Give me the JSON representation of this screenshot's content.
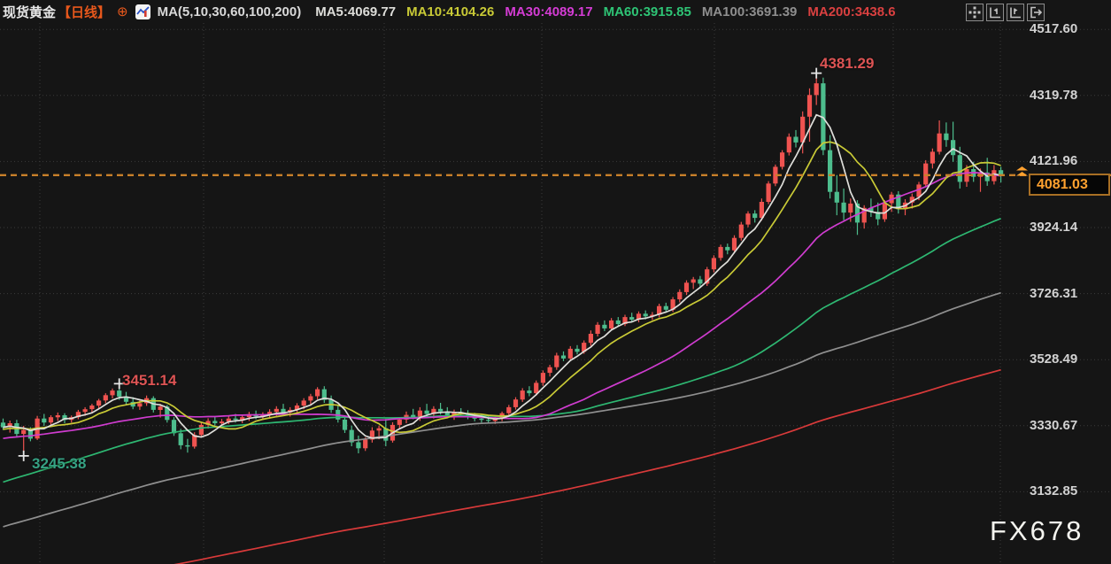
{
  "header": {
    "symbol": "现货黄金",
    "period": "【日线】",
    "expand_symbol": "⊕",
    "indicator_label": "MA(5,10,30,60,100,200)",
    "ma_items": [
      {
        "name": "MA5",
        "label": "MA5:4069.77",
        "value": 4069.77,
        "color": "#dededa"
      },
      {
        "name": "MA10",
        "label": "MA10:4104.26",
        "value": 4104.26,
        "color": "#c9ca36"
      },
      {
        "name": "MA30",
        "label": "MA30:4089.17",
        "value": 4089.17,
        "color": "#d43cd4"
      },
      {
        "name": "MA60",
        "label": "MA60:3915.85",
        "value": 3915.85,
        "color": "#2ec475"
      },
      {
        "name": "MA100",
        "label": "MA100:3691.39",
        "value": 3691.39,
        "color": "#8f8f8f"
      },
      {
        "name": "MA200",
        "label": "MA200:3438.6",
        "value": 3438.6,
        "color": "#d94040"
      }
    ],
    "toolbar_icons": [
      "move-icon",
      "axis-scale-left-icon",
      "axis-scale-right-icon",
      "exit-chart-icon"
    ]
  },
  "right_axis": {
    "labels": [
      "4517.60",
      "4319.78",
      "4121.96",
      "3924.14",
      "3726.31",
      "3528.49",
      "3330.67",
      "3132.85"
    ]
  },
  "price_tag": {
    "value": "4081.03"
  },
  "watermark": "FX678",
  "chart_data": {
    "type": "candlestick",
    "title": "现货黄金【日线】",
    "interval": "daily",
    "last_price": 4081.03,
    "y_ticks": [
      4517.6,
      4319.78,
      4121.96,
      3924.14,
      3726.31,
      3528.49,
      3330.67,
      3132.85
    ],
    "colors": {
      "up": "#ef5350",
      "down": "#4dbd8d",
      "price_line": "#c8802a",
      "background": "#151515"
    },
    "ma_lines": [
      {
        "period": 200,
        "color": "#d93a3a",
        "current": 3438.6
      },
      {
        "period": 100,
        "color": "#8f8f8f",
        "current": 3691.39
      },
      {
        "period": 60,
        "color": "#2eb872",
        "current": 3915.85
      },
      {
        "period": 30,
        "color": "#cf3ccf",
        "current": 4089.17
      },
      {
        "period": 10,
        "color": "#c9ca36",
        "current": 4104.26
      },
      {
        "period": 5,
        "color": "#dededa",
        "current": 4069.77
      }
    ],
    "annotations": [
      {
        "text": "4381.29",
        "price": 4381.29,
        "bar": 119,
        "side": "high",
        "color": "#dd5454"
      },
      {
        "text": "3451.14",
        "price": 3451.14,
        "bar": 17,
        "side": "high",
        "color": "#dd5454"
      },
      {
        "text": "3245.38",
        "price": 3245.38,
        "bar": 3,
        "side": "low",
        "color": "#36a284"
      }
    ],
    "candles": [
      [
        3340,
        3352,
        3318,
        3326
      ],
      [
        3326,
        3346,
        3310,
        3338
      ],
      [
        3338,
        3348,
        3298,
        3306
      ],
      [
        3306,
        3330,
        3245.38,
        3318
      ],
      [
        3318,
        3326,
        3284,
        3292
      ],
      [
        3292,
        3360,
        3288,
        3352
      ],
      [
        3352,
        3366,
        3330,
        3340
      ],
      [
        3340,
        3362,
        3332,
        3356
      ],
      [
        3356,
        3370,
        3345,
        3362
      ],
      [
        3362,
        3368,
        3338,
        3348
      ],
      [
        3348,
        3361,
        3340,
        3356
      ],
      [
        3356,
        3378,
        3350,
        3372
      ],
      [
        3372,
        3386,
        3360,
        3380
      ],
      [
        3380,
        3396,
        3368,
        3391
      ],
      [
        3391,
        3411,
        3382,
        3406
      ],
      [
        3406,
        3428,
        3398,
        3422
      ],
      [
        3422,
        3442,
        3412,
        3436
      ],
      [
        3436,
        3451.14,
        3408,
        3418
      ],
      [
        3418,
        3432,
        3394,
        3402
      ],
      [
        3402,
        3416,
        3380,
        3388
      ],
      [
        3388,
        3406,
        3378,
        3398
      ],
      [
        3398,
        3421,
        3390,
        3413
      ],
      [
        3413,
        3419,
        3370,
        3378
      ],
      [
        3378,
        3396,
        3355,
        3388
      ],
      [
        3388,
        3393,
        3340,
        3348
      ],
      [
        3348,
        3356,
        3300,
        3308
      ],
      [
        3308,
        3321,
        3260,
        3272
      ],
      [
        3272,
        3291,
        3250,
        3268
      ],
      [
        3268,
        3311,
        3262,
        3303
      ],
      [
        3303,
        3341,
        3298,
        3333
      ],
      [
        3333,
        3353,
        3322,
        3345
      ],
      [
        3345,
        3358,
        3330,
        3338
      ],
      [
        3338,
        3351,
        3325,
        3343
      ],
      [
        3343,
        3360,
        3335,
        3352
      ],
      [
        3352,
        3366,
        3340,
        3348
      ],
      [
        3348,
        3363,
        3338,
        3356
      ],
      [
        3356,
        3372,
        3345,
        3365
      ],
      [
        3365,
        3376,
        3350,
        3358
      ],
      [
        3358,
        3371,
        3348,
        3363
      ],
      [
        3363,
        3380,
        3352,
        3372
      ],
      [
        3372,
        3389,
        3360,
        3381
      ],
      [
        3381,
        3396,
        3365,
        3370
      ],
      [
        3370,
        3386,
        3358,
        3378
      ],
      [
        3378,
        3398,
        3368,
        3391
      ],
      [
        3391,
        3413,
        3380,
        3406
      ],
      [
        3406,
        3426,
        3392,
        3419
      ],
      [
        3419,
        3446,
        3410,
        3440
      ],
      [
        3440,
        3449,
        3399,
        3408
      ],
      [
        3408,
        3421,
        3369,
        3378
      ],
      [
        3378,
        3391,
        3340,
        3349
      ],
      [
        3349,
        3361,
        3309,
        3318
      ],
      [
        3318,
        3331,
        3269,
        3281
      ],
      [
        3281,
        3301,
        3248,
        3263
      ],
      [
        3263,
        3296,
        3255,
        3289
      ],
      [
        3289,
        3326,
        3280,
        3316
      ],
      [
        3316,
        3331,
        3290,
        3323
      ],
      [
        3323,
        3351,
        3269,
        3286
      ],
      [
        3286,
        3341,
        3280,
        3333
      ],
      [
        3333,
        3356,
        3320,
        3349
      ],
      [
        3349,
        3373,
        3338,
        3363
      ],
      [
        3363,
        3381,
        3350,
        3356
      ],
      [
        3356,
        3386,
        3345,
        3376
      ],
      [
        3376,
        3396,
        3358,
        3366
      ],
      [
        3366,
        3389,
        3352,
        3381
      ],
      [
        3381,
        3399,
        3364,
        3373
      ],
      [
        3373,
        3386,
        3355,
        3362
      ],
      [
        3362,
        3379,
        3348,
        3371
      ],
      [
        3371,
        3383,
        3356,
        3364
      ],
      [
        3364,
        3377,
        3350,
        3358
      ],
      [
        3358,
        3369,
        3344,
        3352
      ],
      [
        3352,
        3363,
        3340,
        3348
      ],
      [
        3348,
        3359,
        3337,
        3345
      ],
      [
        3345,
        3357,
        3336,
        3351
      ],
      [
        3351,
        3373,
        3344,
        3368
      ],
      [
        3368,
        3393,
        3360,
        3386
      ],
      [
        3386,
        3416,
        3379,
        3409
      ],
      [
        3409,
        3443,
        3402,
        3436
      ],
      [
        3436,
        3449,
        3419,
        3428
      ],
      [
        3428,
        3466,
        3421,
        3459
      ],
      [
        3459,
        3496,
        3450,
        3489
      ],
      [
        3489,
        3513,
        3478,
        3506
      ],
      [
        3506,
        3549,
        3498,
        3541
      ],
      [
        3541,
        3553,
        3524,
        3532
      ],
      [
        3532,
        3569,
        3526,
        3561
      ],
      [
        3561,
        3572,
        3544,
        3552
      ],
      [
        3552,
        3586,
        3546,
        3579
      ],
      [
        3579,
        3616,
        3570,
        3606
      ],
      [
        3606,
        3641,
        3598,
        3633
      ],
      [
        3633,
        3646,
        3614,
        3622
      ],
      [
        3622,
        3653,
        3616,
        3646
      ],
      [
        3646,
        3656,
        3627,
        3635
      ],
      [
        3635,
        3663,
        3629,
        3656
      ],
      [
        3656,
        3669,
        3641,
        3648
      ],
      [
        3648,
        3673,
        3640,
        3666
      ],
      [
        3666,
        3676,
        3649,
        3658
      ],
      [
        3658,
        3671,
        3647,
        3663
      ],
      [
        3663,
        3696,
        3655,
        3689
      ],
      [
        3689,
        3699,
        3669,
        3678
      ],
      [
        3678,
        3716,
        3671,
        3709
      ],
      [
        3709,
        3739,
        3700,
        3731
      ],
      [
        3731,
        3766,
        3722,
        3759
      ],
      [
        3759,
        3776,
        3740,
        3769
      ],
      [
        3769,
        3779,
        3747,
        3756
      ],
      [
        3756,
        3806,
        3749,
        3799
      ],
      [
        3799,
        3841,
        3790,
        3833
      ],
      [
        3833,
        3873,
        3825,
        3866
      ],
      [
        3866,
        3876,
        3844,
        3856
      ],
      [
        3856,
        3901,
        3848,
        3893
      ],
      [
        3893,
        3941,
        3885,
        3933
      ],
      [
        3933,
        3973,
        3925,
        3966
      ],
      [
        3966,
        3976,
        3939,
        3953
      ],
      [
        3953,
        4011,
        3945,
        4001
      ],
      [
        4001,
        4063,
        3994,
        4056
      ],
      [
        4056,
        4113,
        4048,
        4106
      ],
      [
        4106,
        4156,
        4098,
        4149
      ],
      [
        4149,
        4206,
        4140,
        4196
      ],
      [
        4196,
        4216,
        4164,
        4179
      ],
      [
        4179,
        4272,
        4146,
        4256
      ],
      [
        4256,
        4341,
        4181,
        4321
      ],
      [
        4321,
        4381.29,
        4291,
        4356
      ],
      [
        4356,
        4373,
        4141,
        4156
      ],
      [
        4156,
        4201,
        4011,
        4031
      ],
      [
        4031,
        4081,
        3961,
        3999
      ],
      [
        3999,
        4041,
        3946,
        3969
      ],
      [
        3969,
        4011,
        3941,
        3996
      ],
      [
        3996,
        4006,
        3902,
        3939
      ],
      [
        3939,
        3991,
        3921,
        3983
      ],
      [
        3983,
        4011,
        3956,
        3971
      ],
      [
        3971,
        3999,
        3931,
        3949
      ],
      [
        3949,
        4006,
        3941,
        3997
      ],
      [
        3997,
        4031,
        3971,
        4023
      ],
      [
        4023,
        4033,
        3966,
        3979
      ],
      [
        3979,
        4009,
        3961,
        3999
      ],
      [
        3999,
        4026,
        3981,
        4016
      ],
      [
        4016,
        4061,
        4006,
        4053
      ],
      [
        4053,
        4126,
        4046,
        4116
      ],
      [
        4116,
        4161,
        4101,
        4151
      ],
      [
        4151,
        4245,
        4143,
        4206
      ],
      [
        4206,
        4239,
        4166,
        4186
      ],
      [
        4186,
        4241,
        4121,
        4141
      ],
      [
        4141,
        4166,
        4041,
        4061
      ],
      [
        4061,
        4111,
        4046,
        4099
      ],
      [
        4099,
        4121,
        4061,
        4076
      ],
      [
        4076,
        4101,
        4031,
        4089
      ],
      [
        4089,
        4133,
        4049,
        4063
      ],
      [
        4063,
        4111,
        4053,
        4096
      ],
      [
        4096,
        4106,
        4059,
        4081.03
      ]
    ]
  }
}
